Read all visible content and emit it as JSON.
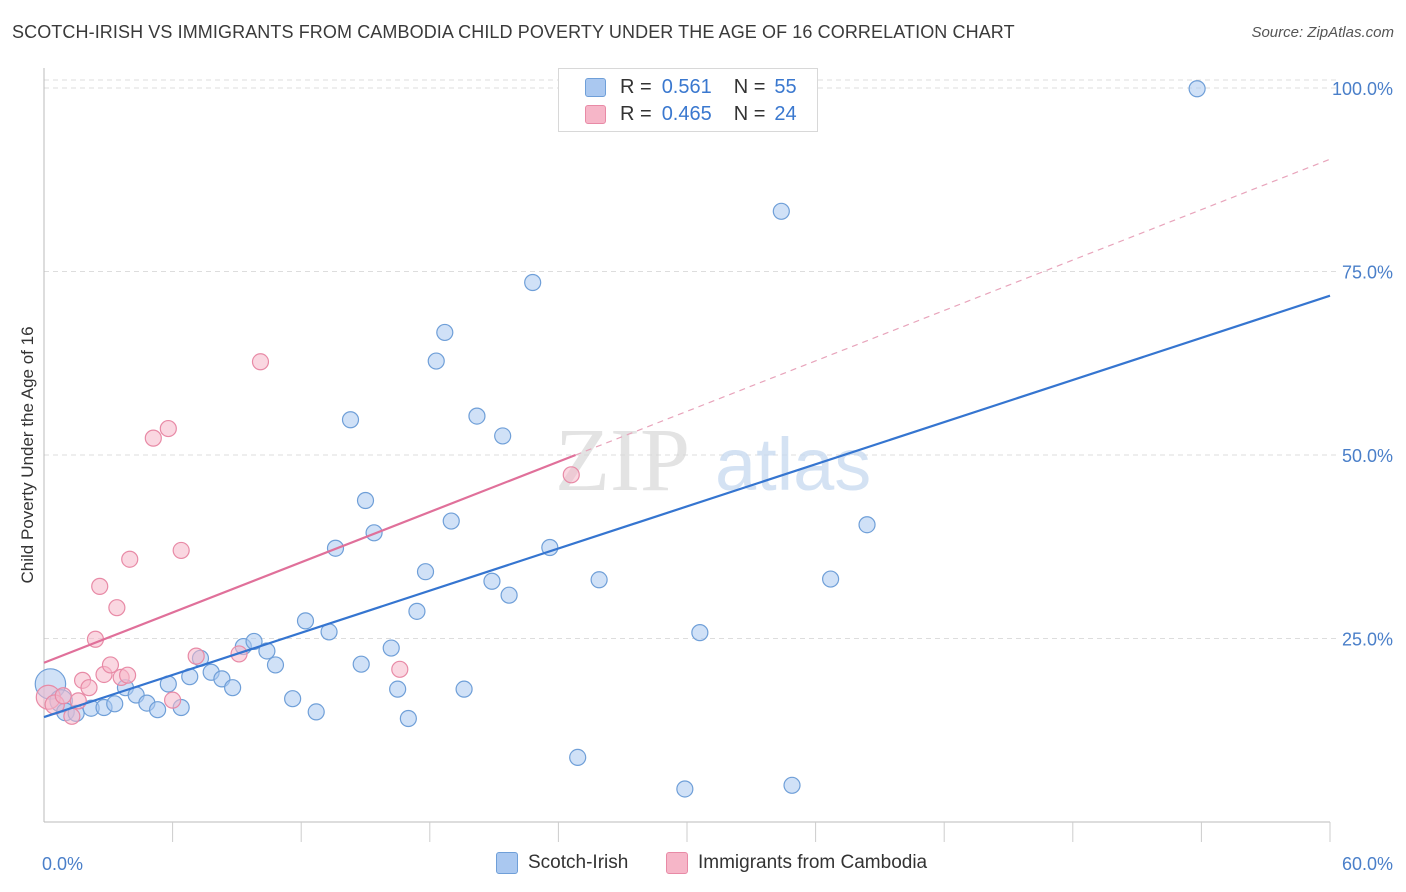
{
  "title": "SCOTCH-IRISH VS IMMIGRANTS FROM CAMBODIA CHILD POVERTY UNDER THE AGE OF 16 CORRELATION CHART",
  "source": "Source: ZipAtlas.com",
  "watermark": {
    "zip": "ZIP",
    "atlas": "atlas"
  },
  "legend": {
    "rows": [
      {
        "r_label": "R =",
        "r_value": "0.561",
        "n_label": "N =",
        "n_value": "55"
      },
      {
        "r_label": "R =",
        "r_value": "0.465",
        "n_label": "N =",
        "n_value": "24"
      }
    ]
  },
  "bottom_legend": {
    "series1": "Scotch-Irish",
    "series2": "Immigrants from Cambodia"
  },
  "colors": {
    "blue_fill": "#aac8f0",
    "blue_stroke": "#6f9fd8",
    "blue_line": "#3575d0",
    "pink_fill": "#f6b6c8",
    "pink_stroke": "#e88aa6",
    "pink_line": "#e0709a",
    "tick_text": "#4a7fc9",
    "grid": "#dddddd"
  },
  "chart_data": {
    "type": "scatter",
    "title": "SCOTCH-IRISH VS IMMIGRANTS FROM CAMBODIA CHILD POVERTY UNDER THE AGE OF 16 CORRELATION CHART",
    "xlabel": "",
    "ylabel": "Child Poverty Under the Age of 16",
    "xlim": [
      0,
      60
    ],
    "ylim": [
      0,
      100
    ],
    "x_tick_labels": [
      "0.0%",
      "60.0%"
    ],
    "y_ticks": [
      25,
      50,
      75,
      100
    ],
    "y_tick_labels": [
      "25.0%",
      "50.0%",
      "75.0%",
      "100.0%"
    ],
    "grid": true,
    "legend_position": "top-center",
    "series": [
      {
        "name": "Scotch-Irish",
        "color": "#aac8f0",
        "R": 0.561,
        "N": 55,
        "trend": {
          "x": [
            0,
            60
          ],
          "y": [
            14.3,
            71.7
          ],
          "style": "solid"
        },
        "points": [
          {
            "x": 0.3,
            "y": 18.8,
            "s": 1.9
          },
          {
            "x": 0.8,
            "y": 16.5,
            "s": 1.4
          },
          {
            "x": 1.0,
            "y": 15.0,
            "s": 1.1
          },
          {
            "x": 1.5,
            "y": 14.8,
            "s": 1.0
          },
          {
            "x": 2.2,
            "y": 15.5,
            "s": 1.0
          },
          {
            "x": 2.8,
            "y": 15.6,
            "s": 1.0
          },
          {
            "x": 3.3,
            "y": 16.1,
            "s": 1.0
          },
          {
            "x": 3.8,
            "y": 18.3,
            "s": 1.0
          },
          {
            "x": 4.3,
            "y": 17.3,
            "s": 1.0
          },
          {
            "x": 4.8,
            "y": 16.2,
            "s": 1.0
          },
          {
            "x": 5.3,
            "y": 15.3,
            "s": 1.0
          },
          {
            "x": 5.8,
            "y": 18.8,
            "s": 1.0
          },
          {
            "x": 6.4,
            "y": 15.6,
            "s": 1.0
          },
          {
            "x": 6.8,
            "y": 19.8,
            "s": 1.0
          },
          {
            "x": 7.3,
            "y": 22.3,
            "s": 1.0
          },
          {
            "x": 7.8,
            "y": 20.4,
            "s": 1.0
          },
          {
            "x": 8.3,
            "y": 19.5,
            "s": 1.0
          },
          {
            "x": 8.8,
            "y": 18.3,
            "s": 1.0
          },
          {
            "x": 9.3,
            "y": 23.9,
            "s": 1.0
          },
          {
            "x": 9.8,
            "y": 24.6,
            "s": 1.0
          },
          {
            "x": 10.4,
            "y": 23.3,
            "s": 1.0
          },
          {
            "x": 10.8,
            "y": 21.4,
            "s": 1.0
          },
          {
            "x": 11.6,
            "y": 16.8,
            "s": 1.0
          },
          {
            "x": 12.2,
            "y": 27.4,
            "s": 1.0
          },
          {
            "x": 12.7,
            "y": 15.0,
            "s": 1.0
          },
          {
            "x": 13.3,
            "y": 25.9,
            "s": 1.0
          },
          {
            "x": 13.6,
            "y": 37.3,
            "s": 1.0
          },
          {
            "x": 14.3,
            "y": 54.8,
            "s": 1.0
          },
          {
            "x": 14.8,
            "y": 21.5,
            "s": 1.0
          },
          {
            "x": 15.0,
            "y": 43.8,
            "s": 1.0
          },
          {
            "x": 15.4,
            "y": 39.4,
            "s": 1.0
          },
          {
            "x": 16.2,
            "y": 23.7,
            "s": 1.0
          },
          {
            "x": 16.5,
            "y": 18.1,
            "s": 1.0
          },
          {
            "x": 17.0,
            "y": 14.1,
            "s": 1.0
          },
          {
            "x": 17.4,
            "y": 28.7,
            "s": 1.0
          },
          {
            "x": 17.8,
            "y": 34.1,
            "s": 1.0
          },
          {
            "x": 18.3,
            "y": 62.8,
            "s": 1.0
          },
          {
            "x": 18.7,
            "y": 66.7,
            "s": 1.0
          },
          {
            "x": 19.0,
            "y": 41.0,
            "s": 1.0
          },
          {
            "x": 19.6,
            "y": 18.1,
            "s": 1.0
          },
          {
            "x": 20.2,
            "y": 55.3,
            "s": 1.0
          },
          {
            "x": 20.9,
            "y": 32.8,
            "s": 1.0
          },
          {
            "x": 21.4,
            "y": 52.6,
            "s": 1.0
          },
          {
            "x": 21.7,
            "y": 30.9,
            "s": 1.0
          },
          {
            "x": 22.8,
            "y": 73.5,
            "s": 1.0
          },
          {
            "x": 23.6,
            "y": 37.4,
            "s": 1.0
          },
          {
            "x": 24.9,
            "y": 8.8,
            "s": 1.0
          },
          {
            "x": 25.9,
            "y": 33.0,
            "s": 1.0
          },
          {
            "x": 29.9,
            "y": 4.5,
            "s": 1.0
          },
          {
            "x": 30.6,
            "y": 25.8,
            "s": 1.0
          },
          {
            "x": 34.4,
            "y": 83.2,
            "s": 1.0
          },
          {
            "x": 34.9,
            "y": 5.0,
            "s": 1.0
          },
          {
            "x": 36.7,
            "y": 33.1,
            "s": 1.0
          },
          {
            "x": 38.4,
            "y": 40.5,
            "s": 1.0
          },
          {
            "x": 53.8,
            "y": 99.9,
            "s": 1.0
          }
        ]
      },
      {
        "name": "Immigrants from Cambodia",
        "color": "#f6b6c8",
        "R": 0.465,
        "N": 24,
        "trend": {
          "x": [
            0,
            24.8
          ],
          "y": [
            21.7,
            50.0
          ],
          "style": "solid",
          "extension": {
            "x": [
              24.8,
              60
            ],
            "y": [
              50.0,
              90.3
            ],
            "style": "dashed"
          }
        },
        "points": [
          {
            "x": 0.2,
            "y": 17.0,
            "s": 1.5
          },
          {
            "x": 0.5,
            "y": 16.0,
            "s": 1.2
          },
          {
            "x": 0.9,
            "y": 17.2,
            "s": 1.0
          },
          {
            "x": 1.3,
            "y": 14.4,
            "s": 1.0
          },
          {
            "x": 1.6,
            "y": 16.5,
            "s": 1.0
          },
          {
            "x": 1.8,
            "y": 19.3,
            "s": 1.0
          },
          {
            "x": 2.1,
            "y": 18.3,
            "s": 1.0
          },
          {
            "x": 2.4,
            "y": 24.9,
            "s": 1.0
          },
          {
            "x": 2.6,
            "y": 32.1,
            "s": 1.0
          },
          {
            "x": 2.8,
            "y": 20.1,
            "s": 1.0
          },
          {
            "x": 3.1,
            "y": 21.4,
            "s": 1.0
          },
          {
            "x": 3.4,
            "y": 29.2,
            "s": 1.0
          },
          {
            "x": 3.6,
            "y": 19.7,
            "s": 1.0
          },
          {
            "x": 3.9,
            "y": 20.0,
            "s": 1.0
          },
          {
            "x": 4.0,
            "y": 35.8,
            "s": 1.0
          },
          {
            "x": 5.1,
            "y": 52.3,
            "s": 1.0
          },
          {
            "x": 5.8,
            "y": 53.6,
            "s": 1.0
          },
          {
            "x": 6.0,
            "y": 16.6,
            "s": 1.0
          },
          {
            "x": 6.4,
            "y": 37.0,
            "s": 1.0
          },
          {
            "x": 7.1,
            "y": 22.6,
            "s": 1.0
          },
          {
            "x": 9.1,
            "y": 22.9,
            "s": 1.0
          },
          {
            "x": 10.1,
            "y": 62.7,
            "s": 1.0
          },
          {
            "x": 16.6,
            "y": 20.8,
            "s": 1.0
          },
          {
            "x": 24.6,
            "y": 47.3,
            "s": 1.0
          }
        ]
      }
    ]
  }
}
